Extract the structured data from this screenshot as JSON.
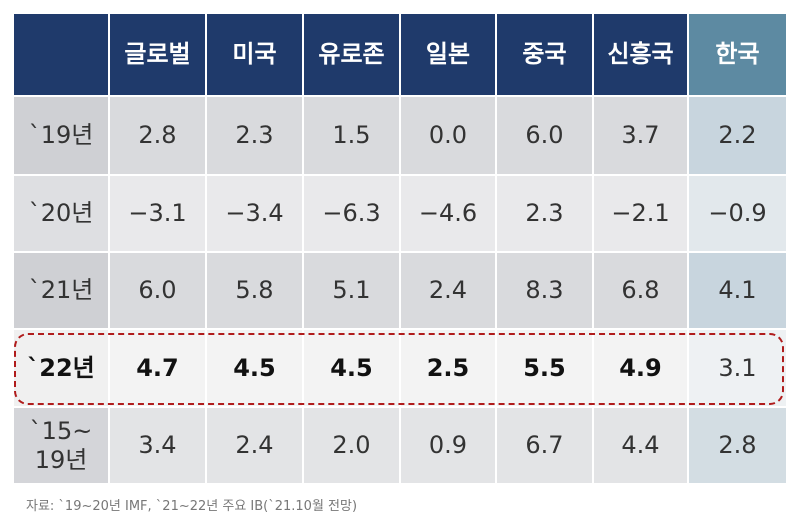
{
  "table": {
    "columns": [
      "글로벌",
      "미국",
      "유로존",
      "일본",
      "중국",
      "신흥국",
      "한국"
    ],
    "rows": [
      {
        "label": "`19년",
        "values": [
          "2.8",
          "2.3",
          "1.5",
          "0.0",
          "6.0",
          "3.7",
          "2.2"
        ]
      },
      {
        "label": "`20년",
        "values": [
          "−3.1",
          "−3.4",
          "−6.3",
          "−4.6",
          "2.3",
          "−2.1",
          "−0.9"
        ]
      },
      {
        "label": "`21년",
        "values": [
          "6.0",
          "5.8",
          "5.1",
          "2.4",
          "8.3",
          "6.8",
          "4.1"
        ]
      },
      {
        "label": "`22년",
        "values": [
          "4.7",
          "4.5",
          "4.5",
          "2.5",
          "5.5",
          "4.9",
          "3.1"
        ]
      },
      {
        "label": "`15~\n19년",
        "values": [
          "3.4",
          "2.4",
          "2.0",
          "0.9",
          "6.7",
          "4.4",
          "2.8"
        ]
      }
    ]
  },
  "footnote": "자료: `19~20년 IMF, `21~22년 주요 IB(`21.10월 전망)"
}
